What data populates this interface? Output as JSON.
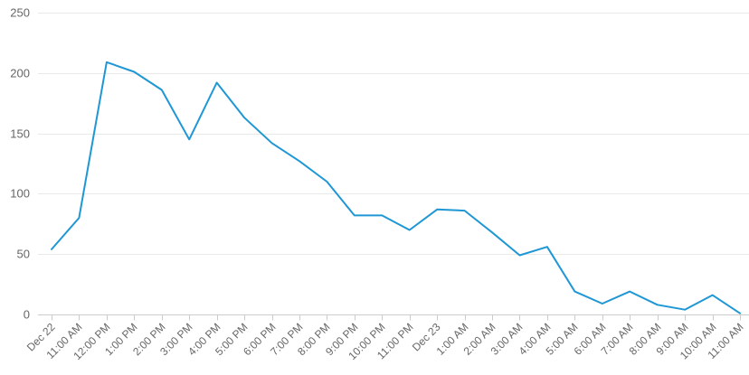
{
  "chart_data": {
    "type": "line",
    "title": "",
    "xlabel": "",
    "ylabel": "",
    "ylim": [
      0,
      250
    ],
    "yticks": [
      0,
      50,
      100,
      150,
      200,
      250
    ],
    "grid": true,
    "legend": "none",
    "categories": [
      "Dec 22",
      "11:00 AM",
      "12:00 PM",
      "1:00 PM",
      "2:00 PM",
      "3:00 PM",
      "4:00 PM",
      "5:00 PM",
      "6:00 PM",
      "7:00 PM",
      "8:00 PM",
      "9:00 PM",
      "10:00 PM",
      "11:00 PM",
      "Dec 23",
      "1:00 AM",
      "2:00 AM",
      "3:00 AM",
      "4:00 AM",
      "5:00 AM",
      "6:00 AM",
      "7:00 AM",
      "8:00 AM",
      "9:00 AM",
      "10:00 AM",
      "11:00 AM"
    ],
    "series": [
      {
        "values": [
          54,
          80,
          209,
          201,
          186,
          145,
          192,
          163,
          142,
          127,
          110,
          82,
          82,
          70,
          87,
          86,
          68,
          49,
          56,
          19,
          9,
          19,
          8,
          4,
          16,
          1
        ],
        "color": "#1f97d5"
      }
    ]
  }
}
